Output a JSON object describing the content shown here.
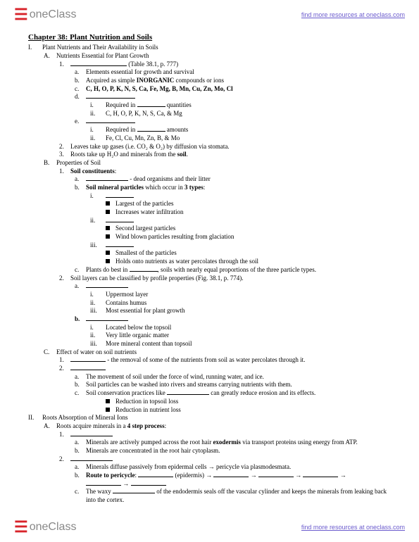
{
  "header": {
    "logo_text": "oneClass",
    "link": "find more resources at oneclass.com"
  },
  "title": "Chapter 38: Plant Nutrition and Soils",
  "L": {
    "I1": "Plant Nutrients and Their Availability in Soils",
    "I1A": "Nutrients Essential for Plant Growth",
    "I1A1_suf": " (Table 38.1, p. 777)",
    "I1A1a": "Elements essential for growth and survival",
    "I1A1b_pre": "Acquired as simple ",
    "I1A1b_b": "INORGANIC",
    "I1A1b_suf": " compounds or ions",
    "I1A1c": "C, H, O, P, K, N, S, Ca, Fe, Mg, B, Mn, Cu, Zn, Mo, Cl",
    "I1A1d_i_pre": "Required in ",
    "I1A1d_i_suf": " quantities",
    "I1A1d_ii": "C, H, O, P, K, N, S, Ca, & Mg",
    "I1A1e_i_pre": "Required in ",
    "I1A1e_i_suf": " amounts",
    "I1A1e_ii": "Fe, Cl, Cu, Mn, Zn, B, & Mo",
    "I1A2": "Leaves take up gases (i.e. CO₂ & O₂) by diffusion via stomata.",
    "I1A3_pre": "Roots take up H₂O and minerals from the ",
    "I1A3_b": "soil",
    "I1B": "Properties of Soil",
    "I1B1_b": "Soil constituents",
    "I1B1_suf": ":",
    "I1B1a_suf": "- dead organisms and their litter",
    "I1B1b_b": "Soil mineral particles",
    "I1B1b_mid": " which occur in ",
    "I1B1b_b2": "3 types",
    "I1B1b_suf": ":",
    "I1B1b_i_s1": "Largest of the particles",
    "I1B1b_i_s2": "Increases water infiltration",
    "I1B1b_ii_s1": "Second largest particles",
    "I1B1b_ii_s2": "Wind blown particles resulting from glaciation",
    "I1B1b_iii_s1": "Smallest of the particles",
    "I1B1b_iii_s2": "Holds onto nutrients as water percolates through the soil",
    "I1B1c_pre": "Plants do best in ",
    "I1B1c_suf": ", soils with nearly equal proportions of the three particle types.",
    "I1B2": "Soil layers can be classified by profile properties (Fig. 38.1, p. 774).",
    "I1B2a_i": "Uppermost layer",
    "I1B2a_ii": "Contains humus",
    "I1B2a_iii": "Most essential for plant growth",
    "I1B2b_i": "Located below the topsoil",
    "I1B2b_ii": "Very little organic matter",
    "I1B2b_iii": "More mineral content than topsoil",
    "I1C": "Effect of water on soil nutrients",
    "I1C1_suf": "- the removal of some of the nutrients from soil as water percolates through it.",
    "I1C2a": "The movement of soil under the force of wind, running water, and ice.",
    "I1C2b": "Soil particles can be washed into rivers and streams carrying nutrients with them.",
    "I1C2c_pre": "Soil conservation practices like ",
    "I1C2c_suf": " can greatly reduce erosion and its effects.",
    "I1C2c_sq1": "Reduction in topsoil loss",
    "I1C2c_sq2": "Reduction in nutrient loss",
    "II": "Roots Absorption of Mineral Ions",
    "IIA_pre": "Roots acquire minerals in a ",
    "IIA_b": "4 step process",
    "IIA_suf": ":",
    "IIA1a_pre": "Minerals are actively pumped across the root hair ",
    "IIA1a_b": "exodermis",
    "IIA1a_suf": " via transport proteins using energy from ATP.",
    "IIA1b": "Minerals are concentrated in the root hair cytoplasm.",
    "IIA2a": "Minerals diffuse passively from epidermal cells → pericycle via plasmodesmata.",
    "IIA2b_b": "Route to pericycle",
    "IIA2b_mid": ": ",
    "IIA2b_par": " (epidermis) ",
    "IIA2c_pre": "The waxy ",
    "IIA2c_suf": " of the endodermis seals off the vascular cylinder and keeps the minerals from leaking back into the cortex."
  }
}
